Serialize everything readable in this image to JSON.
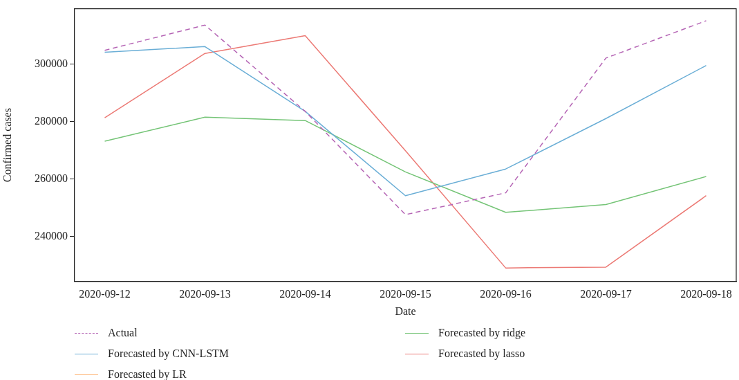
{
  "chart_data": {
    "type": "line",
    "xlabel": "Date",
    "ylabel": "Confirmed cases",
    "categories": [
      "2020-09-12",
      "2020-09-13",
      "2020-09-14",
      "2020-09-15",
      "2020-09-16",
      "2020-09-17",
      "2020-09-18"
    ],
    "series": [
      {
        "name": "Actual",
        "color": "#b565b5",
        "line_style": "dashed",
        "values": [
          304900,
          313700,
          283600,
          247600,
          255200,
          302200,
          315200
        ]
      },
      {
        "name": "Forecasted by CNN-LSTM",
        "color": "#6aaed6",
        "values": [
          304200,
          306200,
          283600,
          254200,
          263500,
          281100,
          299600
        ]
      },
      {
        "name": "Forecasted by LR",
        "color": "#fdae6b",
        "values": [
          null,
          null,
          null,
          null,
          null,
          null,
          null
        ]
      },
      {
        "name": "Forecasted by ridge",
        "color": "#74c476",
        "values": [
          273200,
          281600,
          280400,
          262500,
          248400,
          251100,
          260900
        ]
      },
      {
        "name": "Forecasted by lasso",
        "color": "#ec7a75",
        "values": [
          281400,
          303800,
          310000,
          269900,
          229000,
          229300,
          254200
        ]
      }
    ],
    "ylim": [
      224300,
      319400
    ],
    "yticks": [
      240000,
      260000,
      280000,
      300000
    ],
    "grid": false,
    "legend": "bottom",
    "marker": "none",
    "line_style": "solid"
  }
}
